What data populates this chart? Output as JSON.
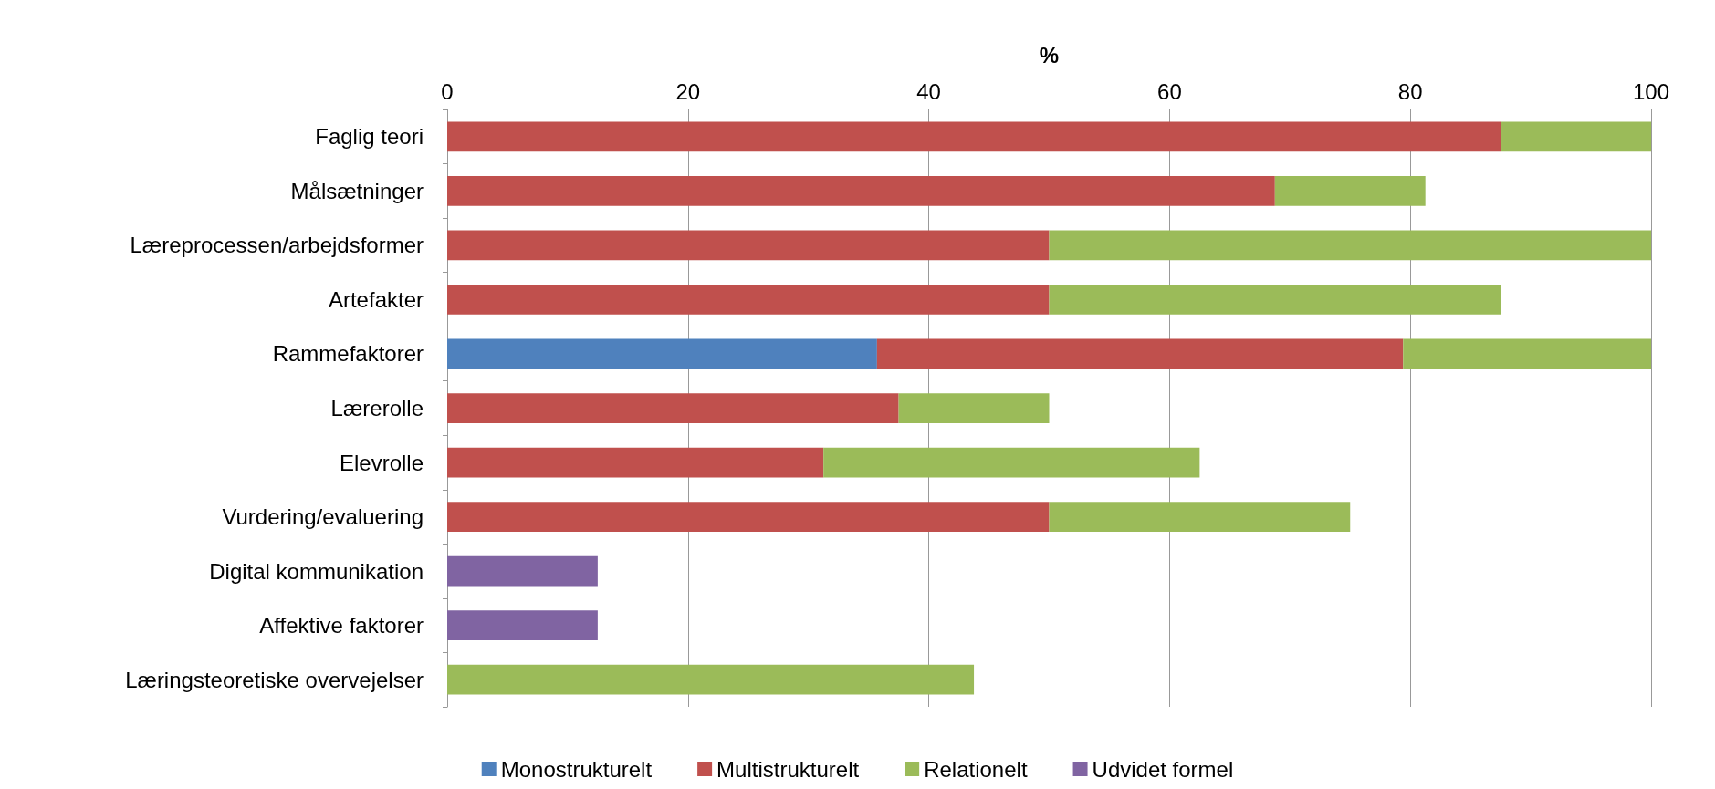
{
  "chart_data": {
    "type": "bar",
    "orientation": "horizontal",
    "stacked": true,
    "xlabel": "%",
    "categories": [
      "Faglig teori",
      "Målsætninger",
      "Læreprocessen/arbejdsformer",
      "Artefakter",
      "Rammefaktorer",
      "Lærerolle",
      "Elevrolle",
      "Vurdering/evaluering",
      "Digital kommunikation",
      "Affektive faktorer",
      "Læringsteoretiske overvejelser"
    ],
    "series": [
      {
        "name": "Monostrukturelt",
        "color": "#4f81bd",
        "values": [
          null,
          null,
          null,
          null,
          35.7,
          null,
          null,
          null,
          null,
          null,
          null
        ]
      },
      {
        "name": "Multistrukturelt",
        "color": "#c0504d",
        "values": [
          87.5,
          68.75,
          50,
          50,
          43.7,
          37.5,
          31.25,
          50,
          null,
          null,
          null
        ]
      },
      {
        "name": "Relationelt",
        "color": "#9bbb59",
        "values": [
          12.5,
          12.5,
          50,
          37.5,
          20.6,
          12.5,
          31.25,
          25,
          null,
          null,
          43.75
        ]
      },
      {
        "name": "Udvidet formel",
        "color": "#8064a2",
        "values": [
          null,
          null,
          null,
          null,
          null,
          null,
          null,
          null,
          12.5,
          12.5,
          null
        ]
      }
    ],
    "xlim": [
      0,
      100
    ],
    "xticks": [
      0,
      20,
      40,
      60,
      80,
      100
    ],
    "grid": "x",
    "legend": "bottom"
  }
}
